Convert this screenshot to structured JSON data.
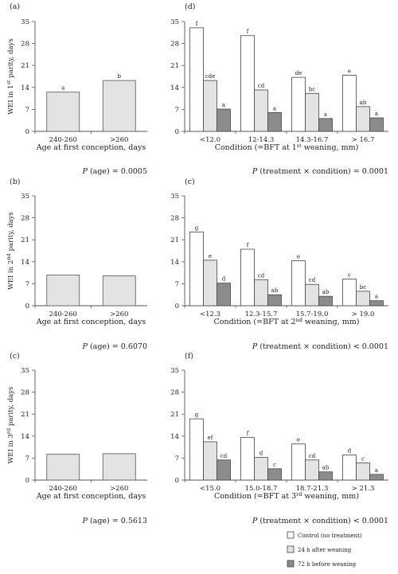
{
  "legend": [
    {
      "label": "Control (no treatment)",
      "color": "#ffffff"
    },
    {
      "label": "24 h after weaning",
      "color": "#e3e3e3"
    },
    {
      "label": "72 h before weaning",
      "color": "#8c8c8c"
    }
  ],
  "chart_data": [
    {
      "type": "bar",
      "panel": "(a)",
      "ylabel": "WEI in 1st parity, days",
      "xlabel": "Age at first conception, days",
      "categories": [
        "240-260",
        ">260"
      ],
      "values": [
        12.5,
        16.2
      ],
      "letters": [
        "a",
        "b"
      ],
      "ylim": [
        0,
        35
      ],
      "yticks": [
        0,
        7,
        14,
        21,
        28,
        35
      ],
      "pvalue": "P (age) = 0.0005"
    },
    {
      "type": "bar",
      "panel": "(d)",
      "xlabel": "Condition (=BFT at 1st weaning,  mm)",
      "categories": [
        "<12.0",
        "12-14.3",
        "14.3-16.7",
        "> 16.7"
      ],
      "series": [
        {
          "name": "Control (no treatment)",
          "values": [
            33.0,
            30.5,
            17.2,
            17.9
          ],
          "letters": [
            "f",
            "f",
            "de",
            "e"
          ]
        },
        {
          "name": "24 h after weaning",
          "values": [
            16.2,
            13.2,
            12.1,
            7.9
          ],
          "letters": [
            "cde",
            "cd",
            "bc",
            "ab"
          ]
        },
        {
          "name": "72 h before weaning",
          "values": [
            7.1,
            6.0,
            4.1,
            4.3
          ],
          "letters": [
            "a",
            "a",
            "a",
            "a"
          ]
        }
      ],
      "ylim": [
        0,
        35
      ],
      "yticks": [
        0,
        7,
        14,
        21,
        28,
        35
      ],
      "pvalue": "P (treatment × condition) = 0.0001"
    },
    {
      "type": "bar",
      "panel": "(b)",
      "ylabel": "WEI in 2nd parity, days",
      "xlabel": "Age at first conception, days",
      "categories": [
        "240-260",
        ">260"
      ],
      "values": [
        9.8,
        9.5
      ],
      "letters": [
        "",
        ""
      ],
      "ylim": [
        0,
        35
      ],
      "yticks": [
        0,
        7,
        14,
        21,
        28,
        35
      ],
      "pvalue": "P (age) = 0.6070"
    },
    {
      "type": "bar",
      "panel": "(c)",
      "xlabel": "Condition (=BFT at 2nd weaning,  mm)",
      "categories": [
        "<12.3",
        "12.3-15.7",
        "15.7-19.0",
        "> 19.0"
      ],
      "series": [
        {
          "name": "Control (no treatment)",
          "values": [
            23.5,
            18.0,
            14.3,
            8.5
          ],
          "letters": [
            "g",
            "f",
            "e",
            "c"
          ]
        },
        {
          "name": "24 h after weaning",
          "values": [
            14.5,
            8.3,
            6.8,
            4.6
          ],
          "letters": [
            "e",
            "cd",
            "cd",
            "bc"
          ]
        },
        {
          "name": "72 h before weaning",
          "values": [
            7.2,
            3.5,
            3.0,
            1.6
          ],
          "letters": [
            "d",
            "ab",
            "ab",
            "a"
          ]
        }
      ],
      "ylim": [
        0,
        35
      ],
      "yticks": [
        0,
        7,
        14,
        21,
        28,
        35
      ],
      "pvalue": "P (treatment × condition) < 0.0001"
    },
    {
      "type": "bar",
      "panel": "(c)",
      "ylabel": "WEI in 3rd parity, days",
      "xlabel": "Age at first conception, days",
      "categories": [
        "240-260",
        ">260"
      ],
      "values": [
        8.2,
        8.4
      ],
      "letters": [
        "",
        ""
      ],
      "ylim": [
        0,
        35
      ],
      "yticks": [
        0,
        7,
        14,
        21,
        28,
        35
      ],
      "pvalue": "P (age) = 0.5613"
    },
    {
      "type": "bar",
      "panel": "(f)",
      "xlabel": "Condition (=BFT at 3rd weaning,  mm)",
      "categories": [
        "<15.0",
        "15.0-18.7",
        "18.7-21.3",
        "> 21.3"
      ],
      "series": [
        {
          "name": "Control (no treatment)",
          "values": [
            19.5,
            13.6,
            11.5,
            8.0
          ],
          "letters": [
            "g",
            "f",
            "e",
            "d"
          ]
        },
        {
          "name": "24 h after weaning",
          "values": [
            12.2,
            7.2,
            6.4,
            5.5
          ],
          "letters": [
            "ef",
            "d",
            "cd",
            "c"
          ]
        },
        {
          "name": "72 h before weaning",
          "values": [
            6.4,
            3.6,
            2.6,
            1.8
          ],
          "letters": [
            "cd",
            "c",
            "ab",
            "a"
          ]
        }
      ],
      "ylim": [
        0,
        35
      ],
      "yticks": [
        0,
        7,
        14,
        21,
        28,
        35
      ],
      "pvalue": "P (treatment × condition) < 0.0001"
    }
  ]
}
